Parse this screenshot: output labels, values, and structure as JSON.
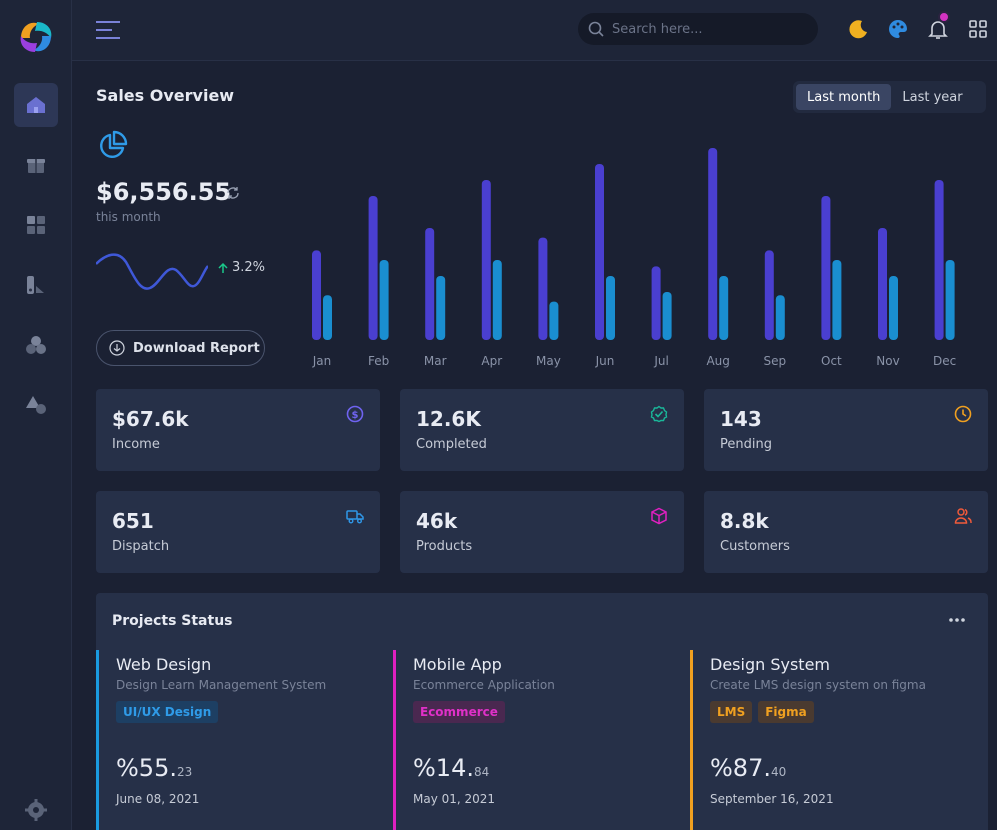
{
  "header": {
    "search_placeholder": "Search here..."
  },
  "sales": {
    "title": "Sales Overview",
    "period_options": [
      "Last month",
      "Last year"
    ],
    "selected_period": "Last month",
    "amount": "$6,556.55",
    "amount_caption": "this month",
    "trend_value": "3.2%",
    "download_label": "Download Report"
  },
  "chart_data": {
    "type": "bar",
    "categories": [
      "Jan",
      "Feb",
      "Mar",
      "Apr",
      "May",
      "Jun",
      "Jul",
      "Aug",
      "Sep",
      "Oct",
      "Nov",
      "Dec"
    ],
    "series": [
      {
        "values": [
          56,
          90,
          70,
          100,
          64,
          110,
          46,
          120,
          56,
          90,
          70,
          100
        ],
        "color": "#4a3fd0"
      },
      {
        "values": [
          28,
          50,
          40,
          50,
          24,
          40,
          30,
          40,
          28,
          50,
          40,
          50
        ],
        "color": "#1a8ed0"
      }
    ],
    "ylim": [
      0,
      125
    ]
  },
  "stats": [
    {
      "value": "$67.6k",
      "label": "Income",
      "icon": "dollar-icon",
      "color": "#6f63f0"
    },
    {
      "value": "12.6K",
      "label": "Completed",
      "icon": "check-circle-icon",
      "color": "#1ab89a"
    },
    {
      "value": "143",
      "label": "Pending",
      "icon": "clock-icon",
      "color": "#f0a020"
    },
    {
      "value": "651",
      "label": "Dispatch",
      "icon": "truck-icon",
      "color": "#2f97e8"
    },
    {
      "value": "46k",
      "label": "Products",
      "icon": "box-icon",
      "color": "#e020c0"
    },
    {
      "value": "8.8k",
      "label": "Customers",
      "icon": "users-icon",
      "color": "#f05a3a"
    }
  ],
  "projects": {
    "title": "Projects Status",
    "items": [
      {
        "name": "Web Design",
        "description": "Design Learn Management System",
        "tags": [
          "UI/UX Design"
        ],
        "percent_main": "%55.",
        "percent_fraction": "23",
        "date": "June 08, 2021",
        "color": "#1a9be0"
      },
      {
        "name": "Mobile App",
        "description": "Ecommerce Application",
        "tags": [
          "Ecommerce"
        ],
        "percent_main": "%14.",
        "percent_fraction": "84",
        "date": "May 01, 2021",
        "color": "#e020c0"
      },
      {
        "name": "Design System",
        "description": "Create LMS design system on figma",
        "tags": [
          "LMS",
          "Figma"
        ],
        "percent_main": "%87.",
        "percent_fraction": "40",
        "date": "September 16, 2021",
        "color": "#f0a020"
      }
    ]
  }
}
